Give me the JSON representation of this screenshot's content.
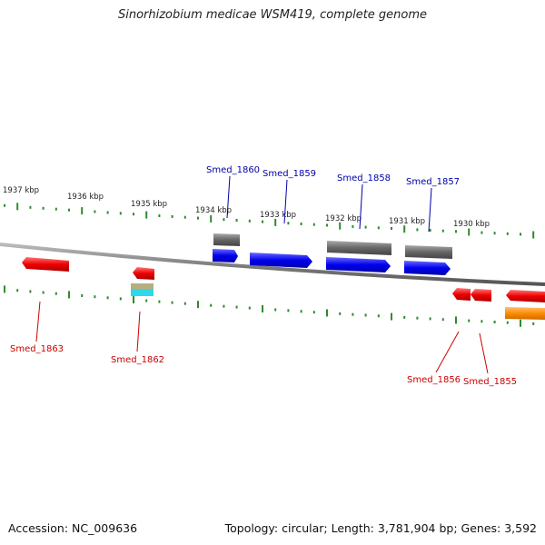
{
  "title": "Sinorhizobium medicae WSM419, complete genome",
  "footer": {
    "accession": "Accession: NC_009636",
    "summary": "Topology: circular; Length: 3,781,904 bp; Genes: 3,592"
  },
  "colors": {
    "backbone": "#888888",
    "ticks": "#2e8b2e",
    "plus_strand_label": "#0000aa",
    "minus_strand_label": "#cc0000",
    "plus_gene": "#0000ee",
    "minus_gene": "#ee0000",
    "rna_feature": "#666666",
    "orange_feature": "#ff8c00"
  },
  "scale_labels": [
    "1937 kbp",
    "1936 kbp",
    "1935 kbp",
    "1934 kbp",
    "1933 kbp",
    "1932 kbp",
    "1931 kbp",
    "1930 kbp"
  ],
  "genes_top": [
    {
      "label": "Smed_1860"
    },
    {
      "label": "Smed_1859"
    },
    {
      "label": "Smed_1858"
    },
    {
      "label": "Smed_1857"
    }
  ],
  "genes_bottom": [
    {
      "label": "Smed_1863"
    },
    {
      "label": "Smed_1862"
    },
    {
      "label": "Smed_1856"
    },
    {
      "label": "Smed_1855"
    }
  ]
}
